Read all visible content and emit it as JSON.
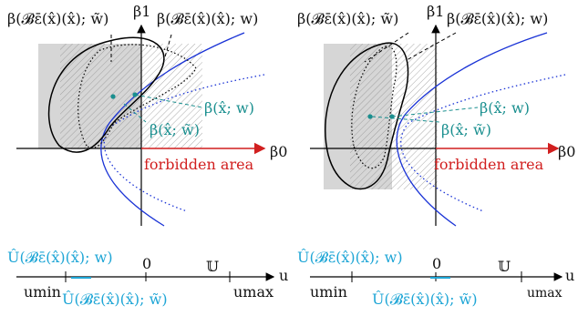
{
  "colors": {
    "axis": "#000000",
    "forbidden": "#d11f1f",
    "boundary": "#1a33d6",
    "teal": "#1a8f8f",
    "cyan": "#1fa6d6",
    "shade": "#d0d0d0"
  },
  "left_panel": {
    "label_tilde": "β(𝓑ε̄(x̂)(x̂); w̃)",
    "label_w": "β(𝓑ε̄(x̂)(x̂); w)",
    "axis_beta1": "β1",
    "axis_beta0": "β0",
    "point_w": "β(x̂; w)",
    "point_tilde": "β(x̂; w̃)",
    "forbidden": "forbidden area",
    "u_set_w": "Û(𝓑ε̄(x̂)(x̂); w)",
    "zero": "0",
    "u_set": "𝕌",
    "u_axis": "u",
    "u_min": "umin",
    "u_max": "umax",
    "u_set_tilde": "Û(𝓑ε̄(x̂)(x̂); w̃)"
  },
  "right_panel": {
    "label_tilde": "β(𝓑ε̄(x̂)(x̂); w̃)",
    "label_w": "β(𝓑ε̄(x̂)(x̂); w)",
    "axis_beta1": "β1",
    "axis_beta0": "β0",
    "point_w": "β(x̂; w)",
    "point_tilde": "β(x̂; w̃)",
    "forbidden": "forbidden area",
    "u_set_w": "Û(𝓑ε̄(x̂)(x̂); w)",
    "zero": "0",
    "u_set": "𝕌",
    "u_axis": "u",
    "u_min": "umin",
    "u_max": "umax",
    "u_set_tilde": "Û(𝓑ε̄(x̂)(x̂); w̃)"
  }
}
